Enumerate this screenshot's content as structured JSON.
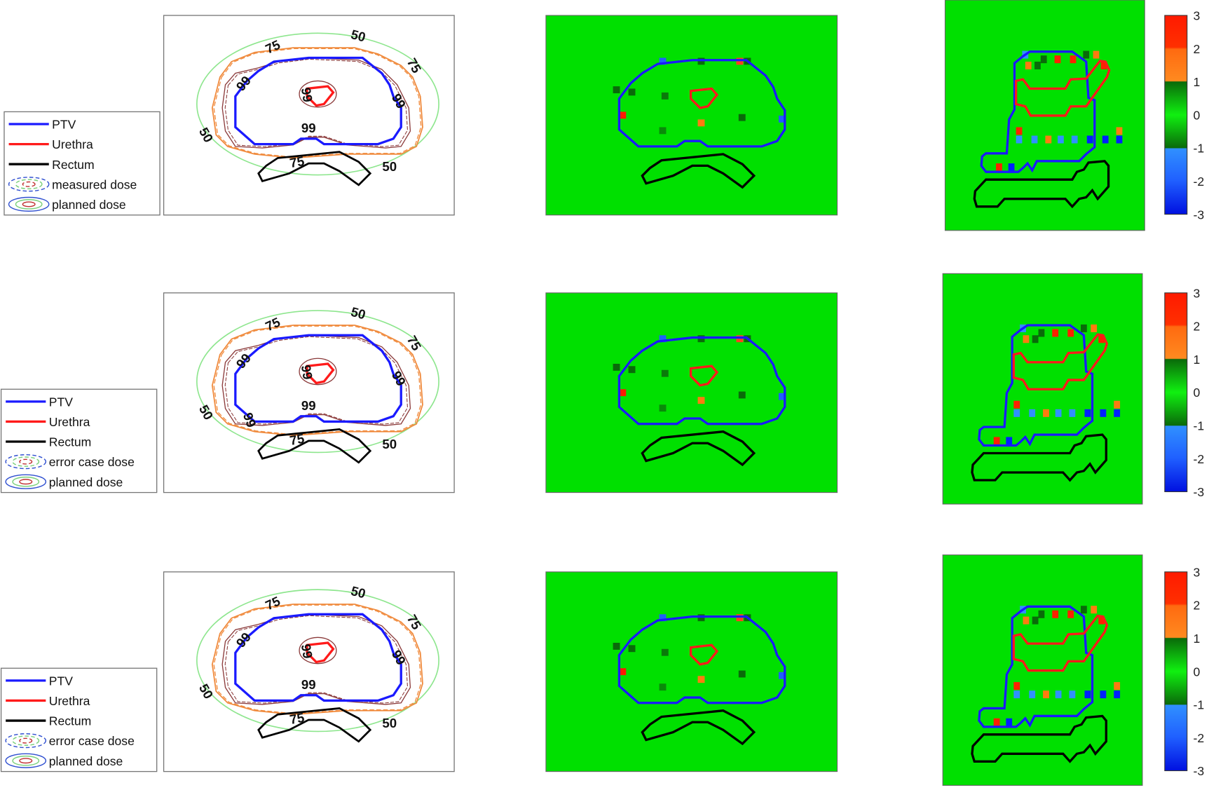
{
  "colors": {
    "ptv": "#1a1aff",
    "urethra": "#ff1a1a",
    "rectum": "#000000",
    "iso50": "#8ee68e",
    "iso75": "#f08a3c",
    "iso99": "#8b3a3a",
    "gamma_background": "#00e000"
  },
  "rows": [
    {
      "legend": [
        "PTV",
        "Urethra",
        "Rectum",
        "measured dose",
        "planned dose"
      ],
      "contour_labels": [
        "50",
        "75",
        "99",
        "99",
        "75",
        "99",
        "50",
        "99",
        "75",
        "50"
      ]
    },
    {
      "legend": [
        "PTV",
        "Urethra",
        "Rectum",
        "error case dose",
        "planned dose"
      ],
      "contour_labels": [
        "50",
        "75",
        "99",
        "99",
        "75",
        "99",
        "50",
        "99",
        "75",
        "50",
        "99"
      ]
    },
    {
      "legend": [
        "PTV",
        "Urethra",
        "Rectum",
        "error case dose",
        "planned dose"
      ],
      "contour_labels": [
        "50",
        "75",
        "99",
        "99",
        "75",
        "99",
        "50",
        "99",
        "75",
        "50"
      ]
    }
  ],
  "chart_data": [
    {
      "type": "contour",
      "panel": "dose comparison",
      "contour_levels": [
        50,
        75,
        99
      ],
      "series": [
        {
          "name": "PTV"
        },
        {
          "name": "Urethra"
        },
        {
          "name": "Rectum"
        },
        {
          "name": "measured dose"
        },
        {
          "name": "planned dose"
        }
      ]
    },
    {
      "type": "heatmap",
      "panel": "axial difference map",
      "colorbar_ticks": [
        "3",
        "2",
        "1",
        "0",
        "-1",
        "-2",
        "-3"
      ],
      "clim": [
        -3,
        3
      ]
    },
    {
      "type": "heatmap",
      "panel": "sagittal difference map",
      "colorbar_ticks": [
        "3",
        "2",
        "1",
        "0",
        "-1",
        "-2",
        "-3"
      ],
      "clim": [
        -3,
        3
      ]
    }
  ]
}
